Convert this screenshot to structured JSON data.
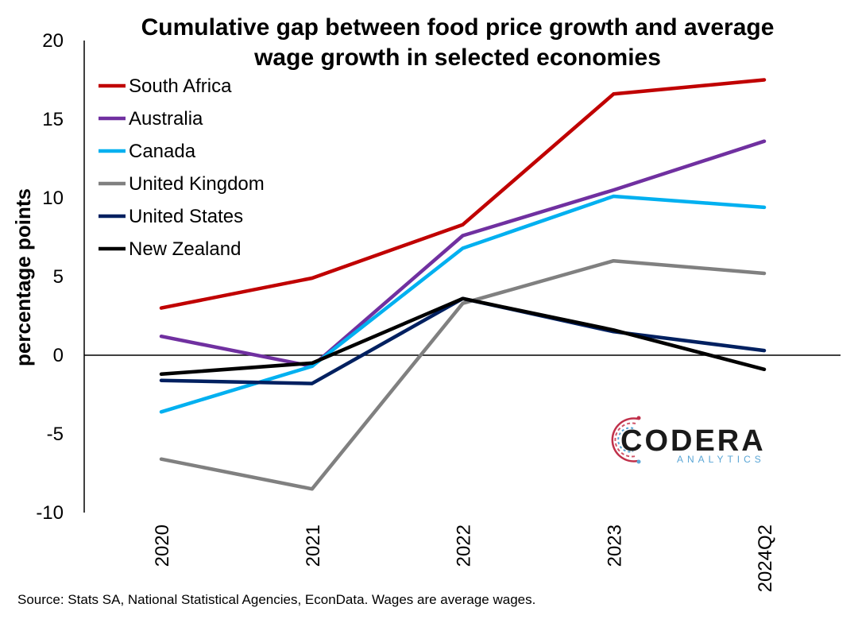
{
  "chart_data": {
    "type": "line",
    "title_lines": [
      "Cumulative gap between food price growth and average",
      "wage growth in selected economies"
    ],
    "ylabel": "percentage points",
    "xlabel": "",
    "categories": [
      "2020",
      "2021",
      "2022",
      "2023",
      "2024Q2"
    ],
    "ylim": [
      -10,
      20
    ],
    "yticks": [
      "-10",
      "-5",
      "0",
      "5",
      "10",
      "15",
      "20"
    ],
    "ytick_values": [
      -10,
      -5,
      0,
      5,
      10,
      15,
      20
    ],
    "grid": false,
    "legend_position": "top-left",
    "series": [
      {
        "name": "South Africa",
        "color": "#c00000",
        "values": [
          3.0,
          4.9,
          8.3,
          16.6,
          17.5
        ]
      },
      {
        "name": "Australia",
        "color": "#7030a0",
        "values": [
          1.2,
          -0.7,
          7.6,
          10.5,
          13.6
        ]
      },
      {
        "name": "Canada",
        "color": "#00b0f0",
        "values": [
          -3.6,
          -0.7,
          6.8,
          10.1,
          9.4
        ]
      },
      {
        "name": "United Kingdom",
        "color": "#808080",
        "values": [
          -6.6,
          -8.5,
          3.3,
          6.0,
          5.2
        ]
      },
      {
        "name": "United States",
        "color": "#002060",
        "values": [
          -1.6,
          -1.8,
          3.6,
          1.5,
          0.3
        ]
      },
      {
        "name": "New Zealand",
        "color": "#000000",
        "values": [
          -1.2,
          -0.5,
          3.6,
          1.6,
          -0.9
        ]
      }
    ]
  },
  "source_note": "Source: Stats SA, National Statistical Agencies, EconData. Wages are average wages.",
  "logo": {
    "main": "CODERA",
    "sub": "ANALYTICS",
    "sub_color": "#5aa6d6"
  }
}
